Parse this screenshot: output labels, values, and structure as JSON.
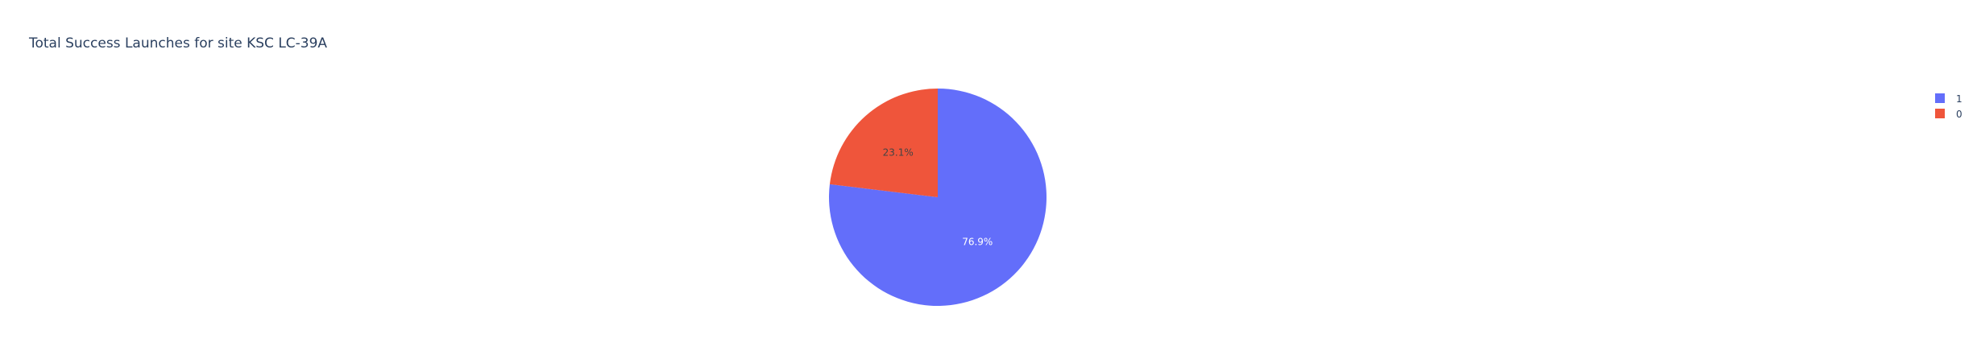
{
  "chart_data": {
    "type": "pie",
    "title": "Total Success Launches for site KSC LC-39A",
    "slices": [
      {
        "label": "1",
        "value": 76.9,
        "percent_label": "76.9%",
        "color": "#636efa",
        "text_color": "#ffffff"
      },
      {
        "label": "0",
        "value": 23.1,
        "percent_label": "23.1%",
        "color": "#ef553b",
        "text_color": "#444444"
      }
    ],
    "direction": "clockwise",
    "legend_position": "top-right"
  }
}
